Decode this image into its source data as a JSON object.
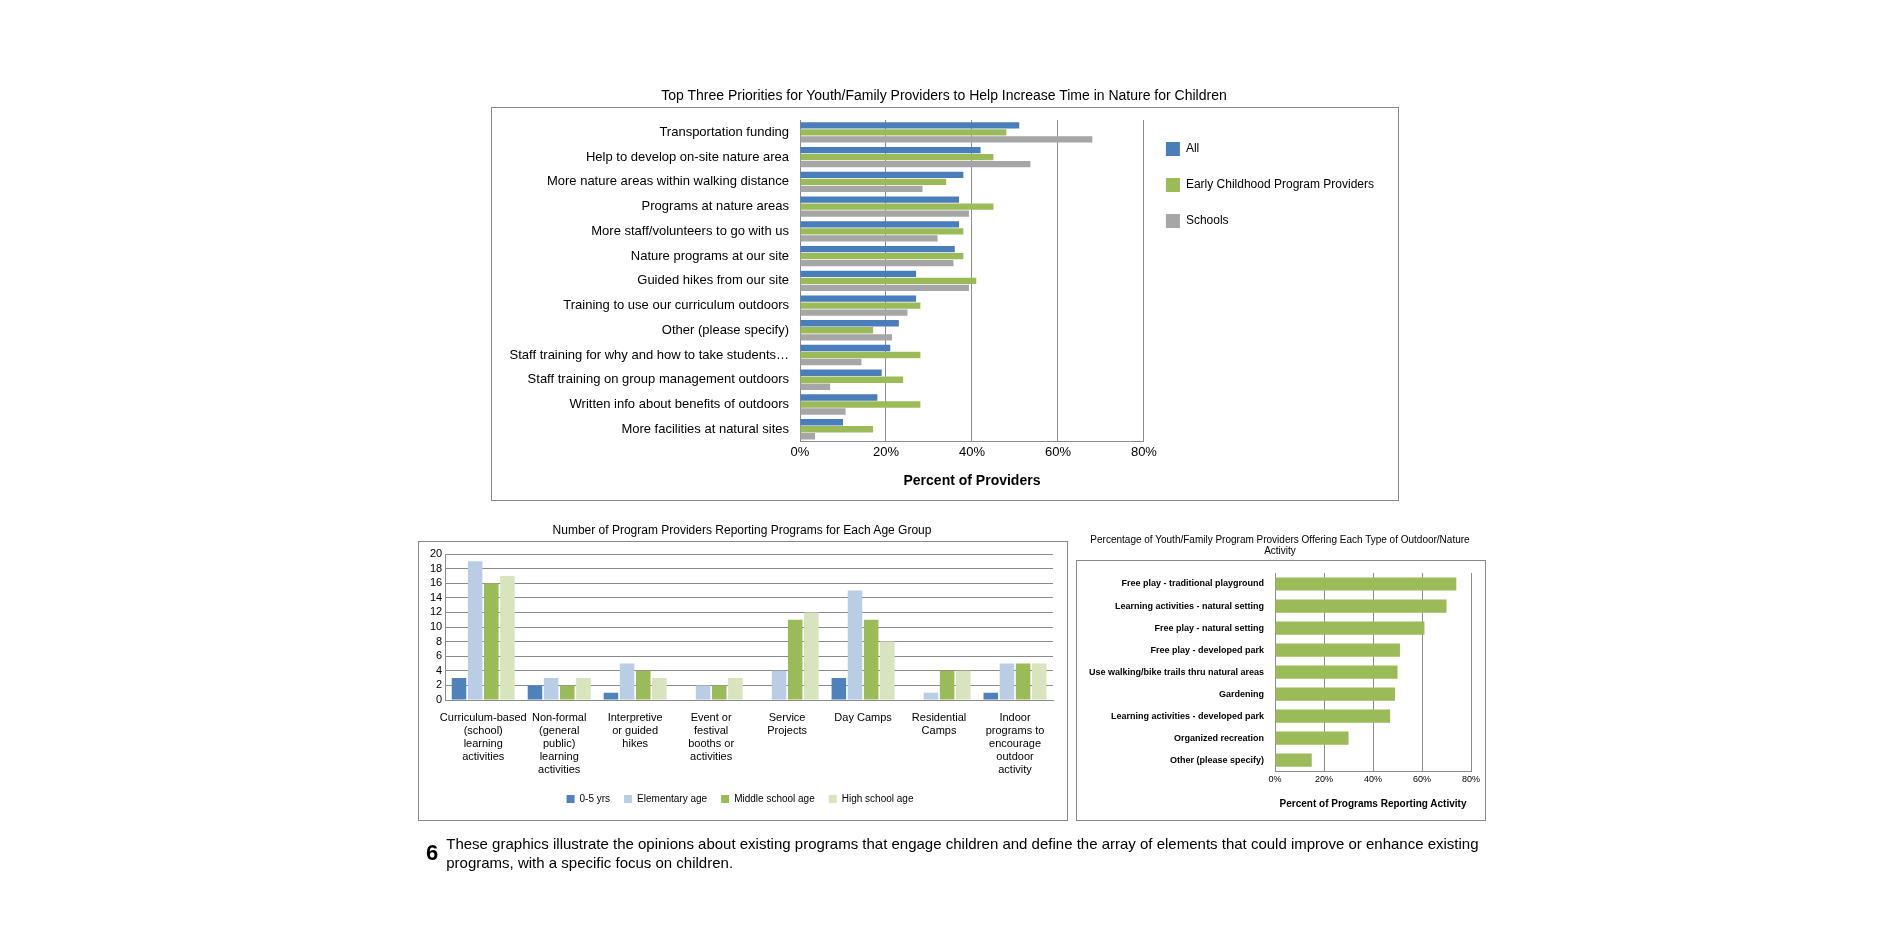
{
  "chart_data": [
    {
      "type": "bar",
      "orientation": "horizontal",
      "title": "Top Three Priorities for Youth/Family Providers to Help Increase Time in Nature for Children",
      "xlabel": "Percent of Providers",
      "categories": [
        "Transportation funding",
        "Help to develop on-site nature area",
        "More nature areas within walking distance",
        "Programs at nature areas",
        "More staff/volunteers to go with us",
        "Nature programs at our site",
        "Guided hikes from our site",
        "Training to use our curriculum outdoors",
        "Other (please specify)",
        "Staff training for why and how to take students…",
        "Staff training on group management outdoors",
        "Written info about benefits of outdoors",
        "More facilities at natural sites"
      ],
      "series": [
        {
          "name": "All",
          "color": "#4a7ebb",
          "values": [
            51,
            42,
            38,
            37,
            37,
            36,
            27,
            27,
            23,
            21,
            19,
            18,
            10
          ]
        },
        {
          "name": "Early Childhood Program Providers",
          "color": "#9bbb59",
          "values": [
            48,
            45,
            34,
            45,
            38,
            38,
            41,
            28,
            17,
            28,
            24,
            28,
            17
          ]
        },
        {
          "name": "Schools",
          "color": "#a6a6a6",
          "values": [
            68,
            53.6,
            28.5,
            39.3,
            32,
            35.7,
            39.3,
            25,
            21.4,
            14.3,
            7,
            10.6,
            3.5
          ]
        }
      ],
      "xlim": [
        0,
        80
      ],
      "xticks": [
        {
          "value": 0,
          "label": "0%"
        },
        {
          "value": 20,
          "label": "20%"
        },
        {
          "value": 40,
          "label": "40%"
        },
        {
          "value": 60,
          "label": "60%"
        },
        {
          "value": 80,
          "label": "80%"
        }
      ],
      "grid": "x",
      "legend": "right"
    },
    {
      "type": "bar",
      "title": "Number of Program Providers Reporting Programs for Each Age Group",
      "categories": [
        "Curriculum-based (school) learning activities",
        "Non-formal (general public) learning activities",
        "Interpretive or guided hikes",
        "Event or festival booths or activities",
        "Service Projects",
        "Day Camps",
        "Residential Camps",
        "Indoor programs to encourage outdoor activity"
      ],
      "series": [
        {
          "name": "0-5 yrs",
          "color": "#4f81bd",
          "values": [
            3,
            2,
            1,
            0,
            0,
            3,
            0,
            1
          ]
        },
        {
          "name": "Elementary age",
          "color": "#b9cde5",
          "values": [
            19,
            3,
            5,
            2,
            4,
            15,
            1,
            5
          ]
        },
        {
          "name": "Middle school age",
          "color": "#9bbb59",
          "values": [
            16,
            2,
            4,
            2,
            11,
            11,
            4,
            5
          ]
        },
        {
          "name": "High school age",
          "color": "#d7e4bd",
          "values": [
            17,
            3,
            3,
            3,
            12,
            8,
            4,
            5
          ]
        }
      ],
      "ylim": [
        0,
        20
      ],
      "yticks": [
        0,
        2,
        4,
        6,
        8,
        10,
        12,
        14,
        16,
        18,
        20
      ],
      "grid": "y",
      "legend": "bottom"
    },
    {
      "type": "bar",
      "orientation": "horizontal",
      "title": "Percentage of Youth/Family Program Providers Offering Each Type of Outdoor/Nature Activity",
      "xlabel": "Percent of Programs Reporting Activity",
      "categories": [
        "Free play - traditional playground",
        "Learning activities - natural setting",
        "Free play - natural setting",
        "Free play - developed park",
        "Use walking/bike trails thru natural areas",
        "Gardening",
        "Learning activities - developed park",
        "Organized recreation",
        "Other (please specify)"
      ],
      "values": [
        74,
        70,
        61,
        51,
        50,
        49,
        47,
        30,
        15
      ],
      "color": "#9bbb59",
      "xlim": [
        0,
        80
      ],
      "xticks": [
        {
          "value": 0,
          "label": "0%"
        },
        {
          "value": 20,
          "label": "20%"
        },
        {
          "value": 40,
          "label": "40%"
        },
        {
          "value": 60,
          "label": "60%"
        },
        {
          "value": 80,
          "label": "80%"
        }
      ],
      "grid": "x",
      "annotations": [
        "6",
        "These graphics illustrate the opinions about existing programs that engage children and define the array of elements that could improve or enhance existing programs, with a specific focus on children."
      ]
    }
  ]
}
